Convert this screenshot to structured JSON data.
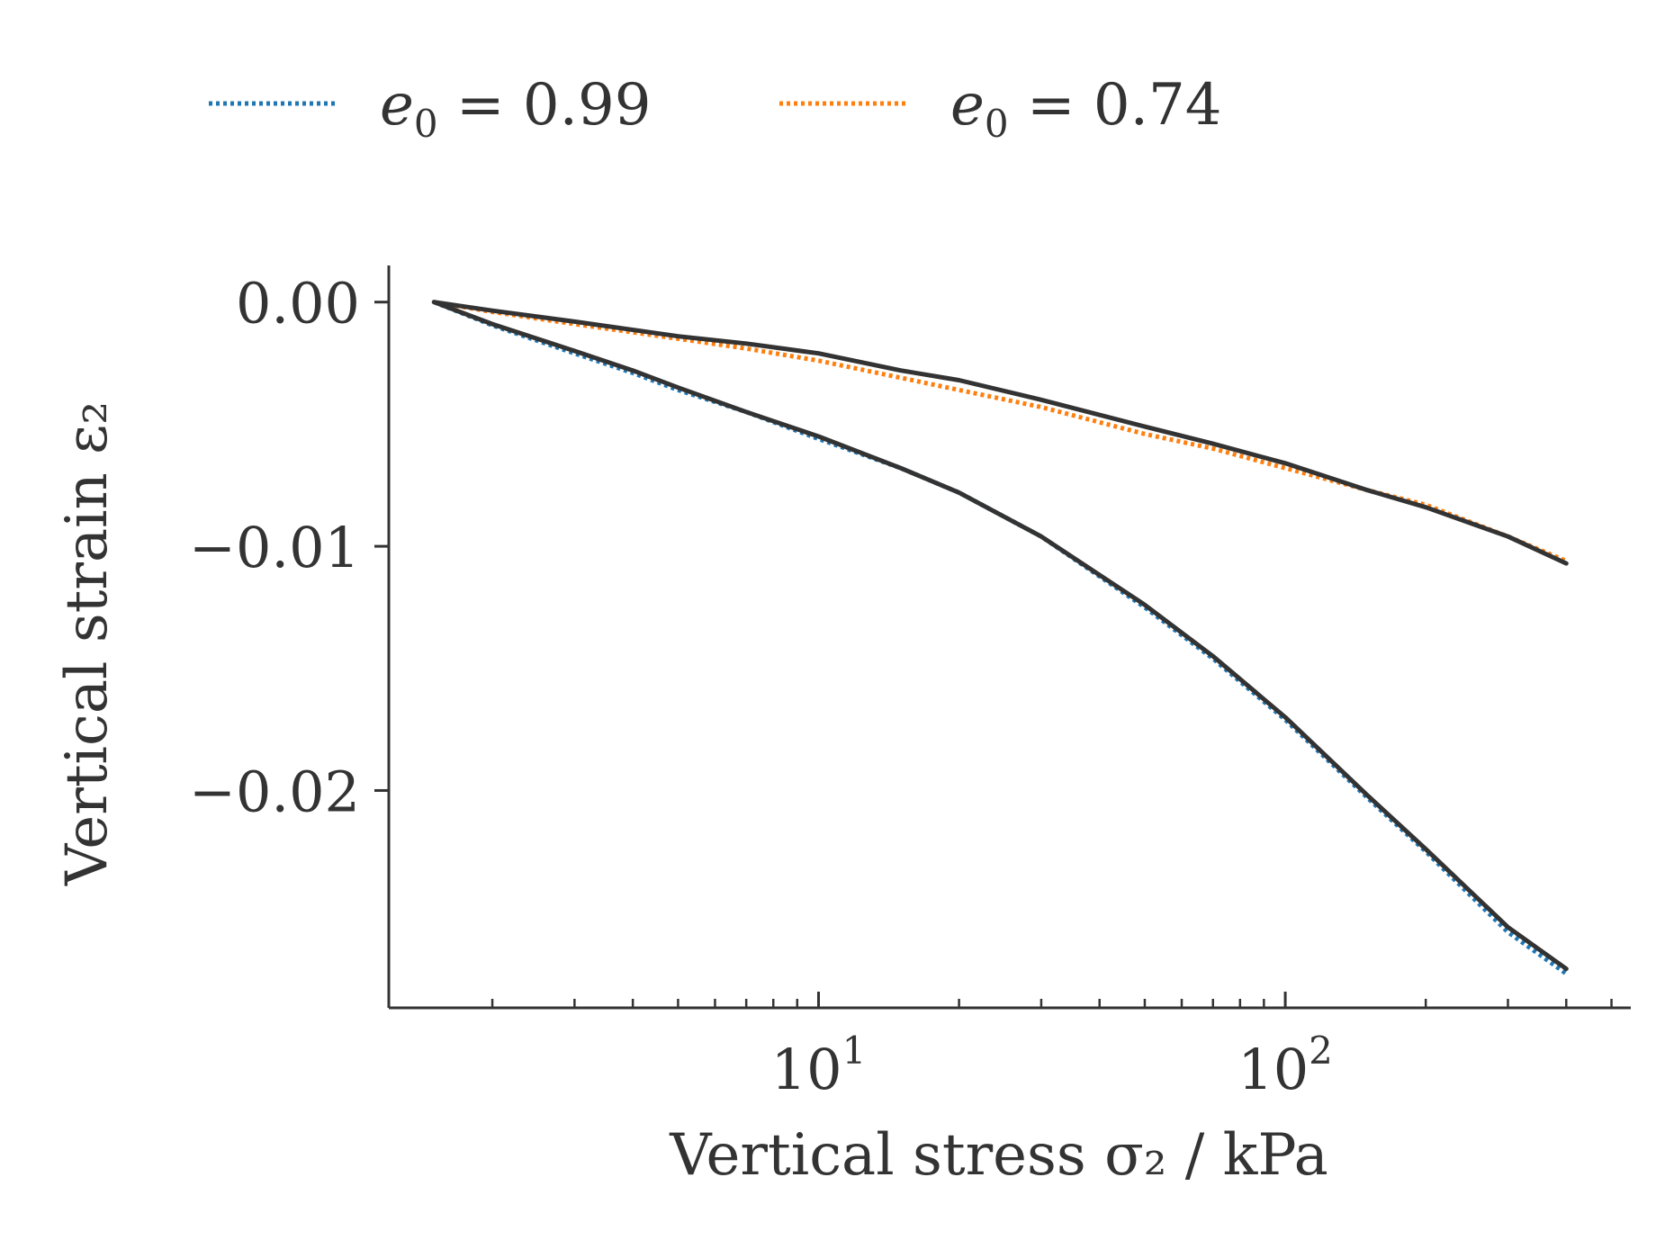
{
  "chart_data": {
    "type": "line",
    "x_scale": "log",
    "xlabel": "Vertical stress σ₂ / kPa",
    "ylabel": "Vertical strain ε₂",
    "xlim": [
      1.2,
      550
    ],
    "ylim": [
      -0.0289,
      0.0015
    ],
    "y_ticks": [
      {
        "value": 0.0,
        "label": "0.00"
      },
      {
        "value": -0.01,
        "label": "−0.01"
      },
      {
        "value": -0.02,
        "label": "−0.02"
      }
    ],
    "x_ticks": [
      {
        "value": 10,
        "base": "10",
        "exp": "1"
      },
      {
        "value": 100,
        "base": "10",
        "exp": "2"
      }
    ],
    "grid": false,
    "legend_position": "top",
    "legend": [
      {
        "label_symbol": "e",
        "label_sub": "0",
        "label_value": "= 0.99",
        "color": "#1f77b4",
        "style": "dotted"
      },
      {
        "label_symbol": "e",
        "label_sub": "0",
        "label_value": "= 0.74",
        "color": "#ff7f0e",
        "style": "dotted"
      }
    ],
    "series": [
      {
        "style": "dotted",
        "color": "#1f77b4",
        "x": [
          1.5,
          2,
          3,
          4,
          5,
          7,
          10,
          15,
          20,
          30,
          50,
          70,
          100,
          150,
          200,
          300,
          400
        ],
        "y": [
          0.0,
          -0.00095,
          -0.0021,
          -0.0029,
          -0.0036,
          -0.0045,
          -0.0056,
          -0.0068,
          -0.0078,
          -0.0096,
          -0.0125,
          -0.0146,
          -0.0171,
          -0.0203,
          -0.0225,
          -0.0258,
          -0.0275
        ]
      },
      {
        "style": "dotted",
        "color": "#ff7f0e",
        "x": [
          1.5,
          2,
          3,
          5,
          7,
          10,
          15,
          20,
          30,
          50,
          70,
          100,
          150,
          200,
          300,
          400
        ],
        "y": [
          0.0,
          -0.0004,
          -0.0009,
          -0.0015,
          -0.0019,
          -0.0024,
          -0.0031,
          -0.0036,
          -0.0043,
          -0.0054,
          -0.006,
          -0.0068,
          -0.0077,
          -0.0083,
          -0.0096,
          -0.0106
        ]
      },
      {
        "style": "solid",
        "color": "#333333",
        "x": [
          1.5,
          2,
          3,
          4,
          5,
          7,
          10,
          15,
          20,
          30,
          50,
          70,
          100,
          150,
          200,
          300,
          400
        ],
        "y": [
          0.0,
          -0.0009,
          -0.002,
          -0.0028,
          -0.0035,
          -0.0045,
          -0.0055,
          -0.0068,
          -0.0078,
          -0.0096,
          -0.0124,
          -0.0145,
          -0.017,
          -0.0202,
          -0.0224,
          -0.0256,
          -0.0273
        ]
      },
      {
        "style": "solid",
        "color": "#333333",
        "x": [
          1.5,
          2,
          3,
          5,
          7,
          10,
          15,
          20,
          30,
          50,
          70,
          100,
          150,
          200,
          300,
          400
        ],
        "y": [
          0.0,
          -0.00035,
          -0.0008,
          -0.0014,
          -0.0017,
          -0.0021,
          -0.0028,
          -0.0032,
          -0.004,
          -0.0051,
          -0.0058,
          -0.0066,
          -0.0077,
          -0.0084,
          -0.0096,
          -0.0107
        ]
      }
    ]
  }
}
